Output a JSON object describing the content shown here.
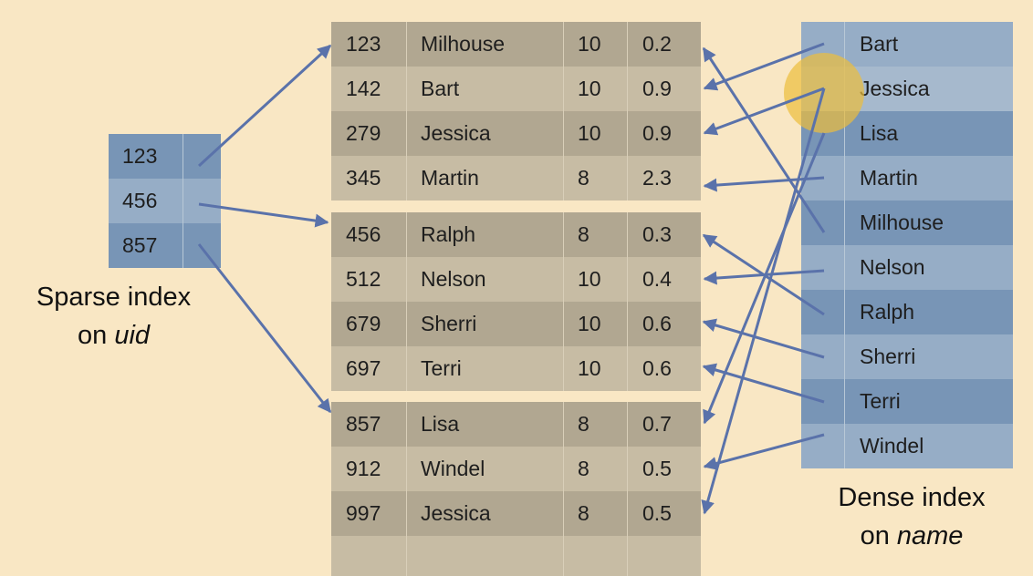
{
  "sparse_index": {
    "keys": [
      "123",
      "456",
      "857"
    ],
    "caption_line1": "Sparse index",
    "caption_on": "on",
    "caption_field": "uid"
  },
  "blocks": [
    [
      {
        "uid": "123",
        "name": "Milhouse",
        "level": "10",
        "score": "0.2"
      },
      {
        "uid": "142",
        "name": "Bart",
        "level": "10",
        "score": "0.9"
      },
      {
        "uid": "279",
        "name": "Jessica",
        "level": "10",
        "score": "0.9"
      },
      {
        "uid": "345",
        "name": "Martin",
        "level": "8",
        "score": "2.3"
      }
    ],
    [
      {
        "uid": "456",
        "name": "Ralph",
        "level": "8",
        "score": "0.3"
      },
      {
        "uid": "512",
        "name": "Nelson",
        "level": "10",
        "score": "0.4"
      },
      {
        "uid": "679",
        "name": "Sherri",
        "level": "10",
        "score": "0.6"
      },
      {
        "uid": "697",
        "name": "Terri",
        "level": "10",
        "score": "0.6"
      }
    ],
    [
      {
        "uid": "857",
        "name": "Lisa",
        "level": "8",
        "score": "0.7"
      },
      {
        "uid": "912",
        "name": "Windel",
        "level": "8",
        "score": "0.5"
      },
      {
        "uid": "997",
        "name": "Jessica",
        "level": "8",
        "score": "0.5"
      },
      {
        "uid": "",
        "name": "",
        "level": "",
        "score": ""
      }
    ]
  ],
  "dense_index": {
    "names": [
      "Bart",
      "Jessica",
      "Lisa",
      "Martin",
      "Milhouse",
      "Nelson",
      "Ralph",
      "Sherri",
      "Terri",
      "Windel"
    ],
    "caption_line1": "Dense index",
    "caption_on": "on",
    "caption_field": "name"
  },
  "colors": {
    "background": "#f9e7c4",
    "arrow": "#5a72aa",
    "index_dark": "#7895b6",
    "index_light": "#96adc6",
    "record_dark": "#b1a791",
    "record_light": "#c7bca4",
    "highlight": "#ecbe3c"
  }
}
